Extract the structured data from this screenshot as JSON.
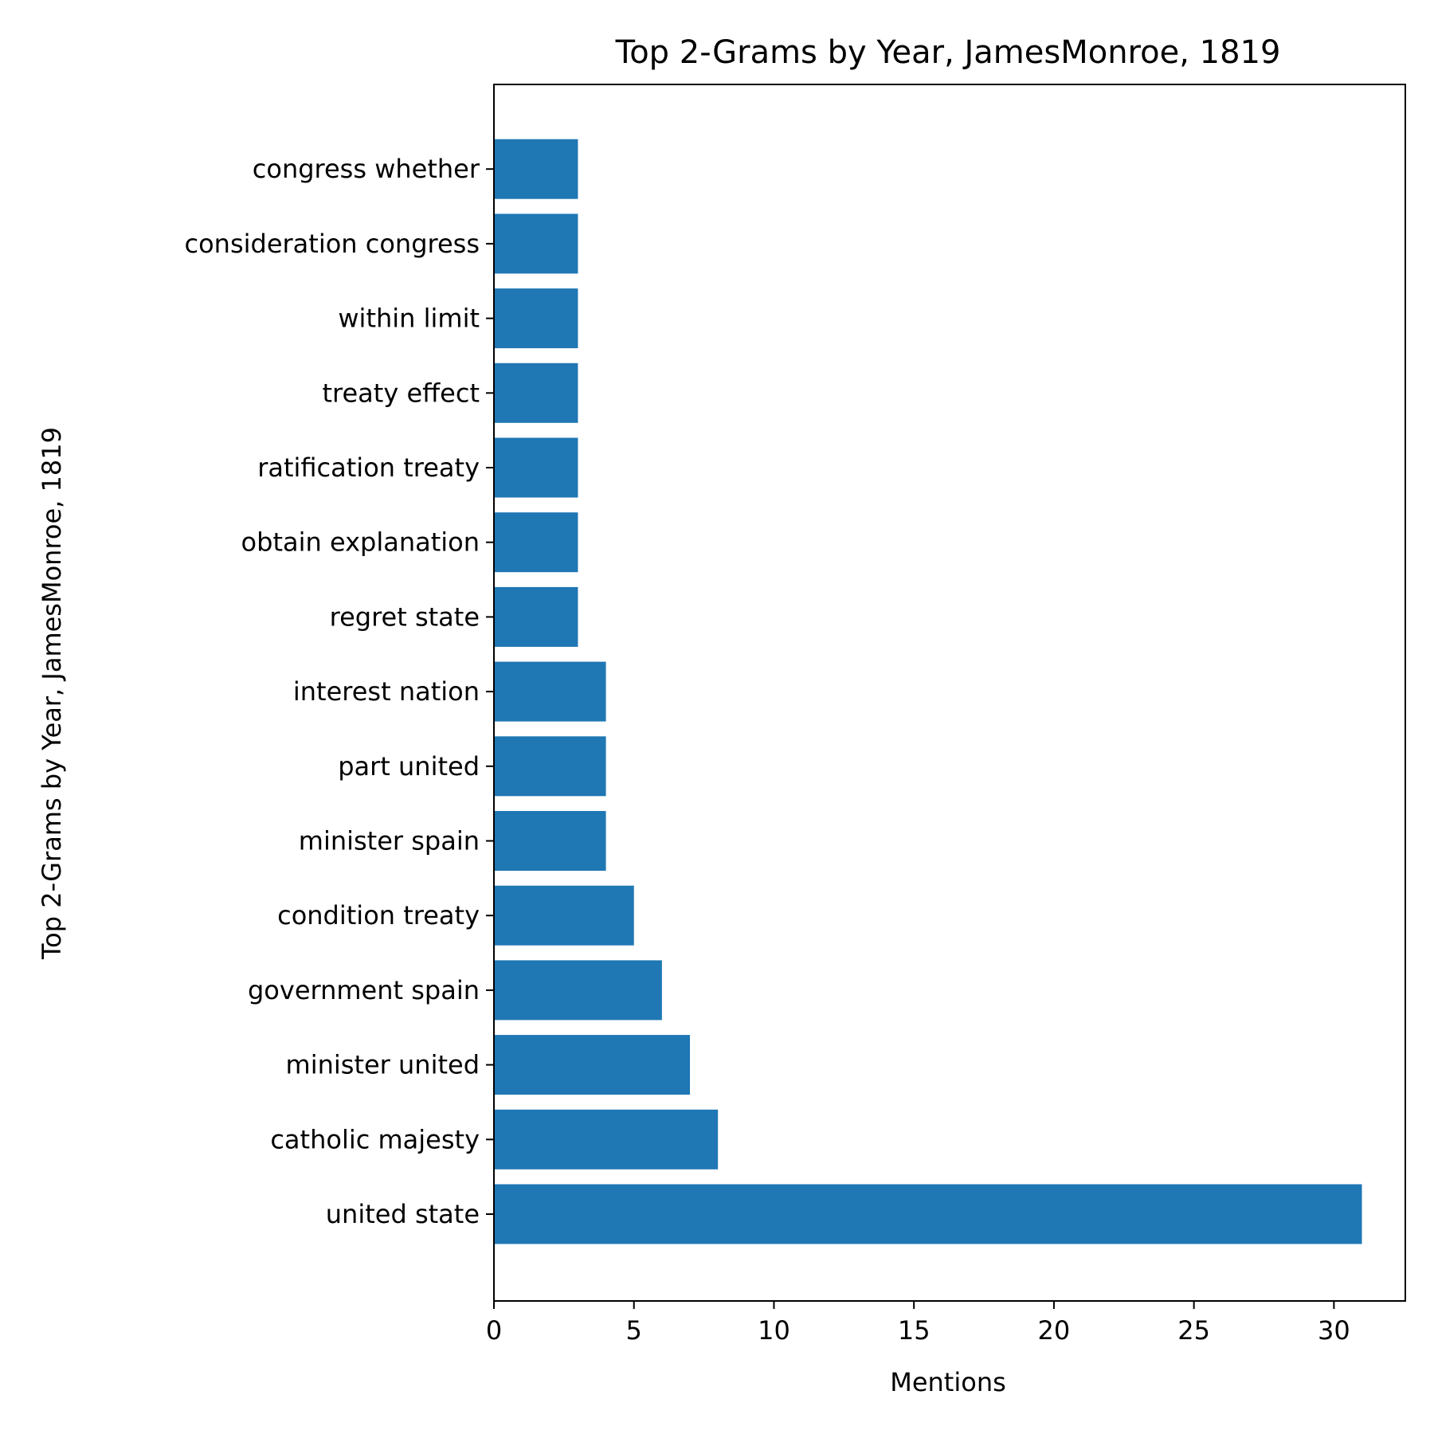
{
  "chart_data": {
    "type": "bar",
    "orientation": "horizontal",
    "title": "Top 2-Grams by Year, JamesMonroe, 1819",
    "xlabel": "Mentions",
    "ylabel": "Top 2-Grams by Year, JamesMonroe, 1819",
    "categories": [
      "united state",
      "catholic majesty",
      "minister united",
      "government spain",
      "condition treaty",
      "minister spain",
      "part united",
      "interest nation",
      "regret state",
      "obtain explanation",
      "ratification treaty",
      "treaty effect",
      "within limit",
      "consideration congress",
      "congress whether"
    ],
    "values": [
      31,
      8,
      7,
      6,
      5,
      4,
      4,
      4,
      3,
      3,
      3,
      3,
      3,
      3,
      3
    ],
    "xlim": [
      0,
      32.55
    ],
    "xticks": [
      0,
      5,
      10,
      15,
      20,
      25,
      30
    ],
    "bar_color": "#1f77b4",
    "grid": false,
    "legend": false
  }
}
